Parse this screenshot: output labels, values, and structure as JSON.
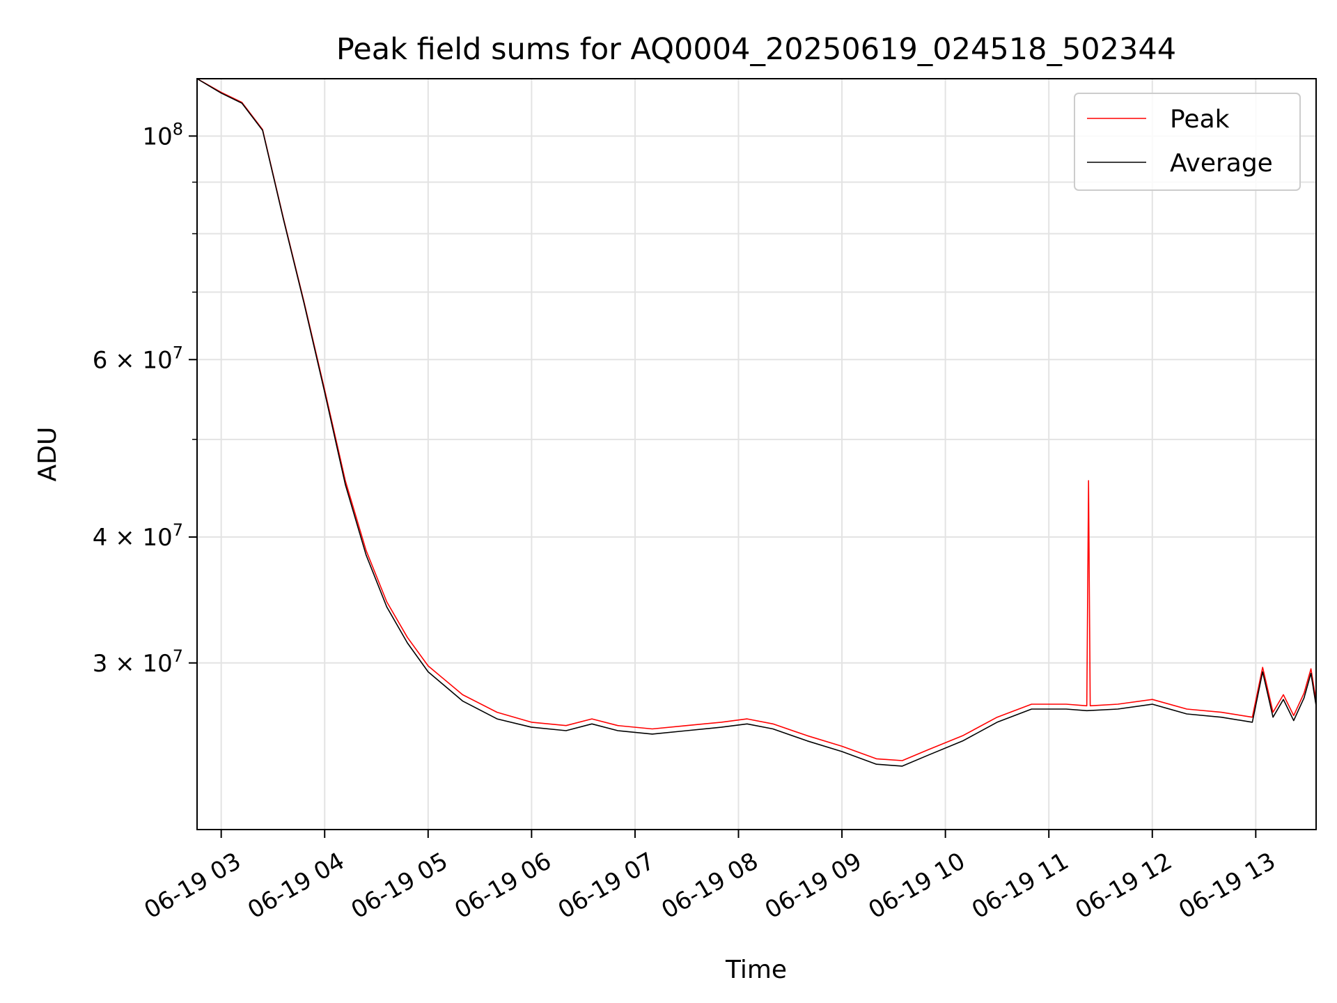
{
  "chart_data": {
    "type": "line",
    "title": "Peak field sums for AQ0004_20250619_024518_502344",
    "xlabel": "Time",
    "ylabel": "ADU",
    "y_scale": "log",
    "ylim": [
      20500000,
      114000000
    ],
    "xlim": [
      "06-19 02:46",
      "06-19 13:35"
    ],
    "grid": true,
    "legend_position": "top-right",
    "x_ticks": [
      "06-19 03",
      "06-19 04",
      "06-19 05",
      "06-19 06",
      "06-19 07",
      "06-19 08",
      "06-19 09",
      "06-19 10",
      "06-19 11",
      "06-19 12",
      "06-19 13"
    ],
    "x_tick_values": [
      "06-19 03:00",
      "06-19 04:00",
      "06-19 05:00",
      "06-19 06:00",
      "06-19 07:00",
      "06-19 08:00",
      "06-19 09:00",
      "06-19 10:00",
      "06-19 11:00",
      "06-19 12:00",
      "06-19 13:00"
    ],
    "y_ticks": [
      {
        "value": 100000000,
        "base": "10",
        "exp": "8"
      },
      {
        "value": 60000000,
        "base": "6 × 10",
        "exp": "7"
      },
      {
        "value": 40000000,
        "base": "4 × 10",
        "exp": "7"
      },
      {
        "value": 30000000,
        "base": "3 × 10",
        "exp": "7"
      }
    ],
    "y_minor_ticks": [
      70000000,
      80000000,
      90000000,
      50000000
    ],
    "series": [
      {
        "name": "Peak",
        "color": "#ff0000",
        "x": [
          "06-19 02:46",
          "06-19 03:00",
          "06-19 03:12",
          "06-19 03:24",
          "06-19 03:36",
          "06-19 03:48",
          "06-19 04:00",
          "06-19 04:12",
          "06-19 04:24",
          "06-19 04:36",
          "06-19 04:48",
          "06-19 05:00",
          "06-19 05:20",
          "06-19 05:40",
          "06-19 06:00",
          "06-19 06:20",
          "06-19 06:35",
          "06-19 06:50",
          "06-19 07:10",
          "06-19 07:30",
          "06-19 07:50",
          "06-19 08:05",
          "06-19 08:20",
          "06-19 08:40",
          "06-19 09:00",
          "06-19 09:20",
          "06-19 09:35",
          "06-19 09:50",
          "06-19 10:10",
          "06-19 10:30",
          "06-19 10:50",
          "06-19 11:10",
          "06-19 11:22",
          "06-19 11:23",
          "06-19 11:24",
          "06-19 11:40",
          "06-19 12:00",
          "06-19 12:20",
          "06-19 12:40",
          "06-19 12:58",
          "06-19 13:04",
          "06-19 13:10",
          "06-19 13:16",
          "06-19 13:22",
          "06-19 13:28",
          "06-19 13:32",
          "06-19 13:35"
        ],
        "y": [
          114000000,
          110500000,
          108000000,
          101500000,
          83000000,
          68500000,
          56000000,
          45500000,
          38800000,
          34500000,
          31800000,
          29800000,
          27900000,
          26800000,
          26200000,
          26000000,
          26400000,
          26000000,
          25800000,
          26000000,
          26200000,
          26400000,
          26100000,
          25400000,
          24800000,
          24100000,
          24000000,
          24600000,
          25400000,
          26500000,
          27300000,
          27300000,
          27200000,
          45500000,
          27200000,
          27300000,
          27600000,
          27000000,
          26800000,
          26500000,
          29700000,
          26800000,
          27900000,
          26600000,
          28000000,
          29600000,
          27500000
        ]
      },
      {
        "name": "Average",
        "color": "#000000",
        "x": [
          "06-19 02:46",
          "06-19 03:00",
          "06-19 03:12",
          "06-19 03:24",
          "06-19 03:36",
          "06-19 03:48",
          "06-19 04:00",
          "06-19 04:12",
          "06-19 04:24",
          "06-19 04:36",
          "06-19 04:48",
          "06-19 05:00",
          "06-19 05:20",
          "06-19 05:40",
          "06-19 06:00",
          "06-19 06:20",
          "06-19 06:35",
          "06-19 06:50",
          "06-19 07:10",
          "06-19 07:30",
          "06-19 07:50",
          "06-19 08:05",
          "06-19 08:20",
          "06-19 08:40",
          "06-19 09:00",
          "06-19 09:20",
          "06-19 09:35",
          "06-19 09:50",
          "06-19 10:10",
          "06-19 10:30",
          "06-19 10:50",
          "06-19 11:10",
          "06-19 11:22",
          "06-19 11:40",
          "06-19 12:00",
          "06-19 12:20",
          "06-19 12:40",
          "06-19 12:58",
          "06-19 13:04",
          "06-19 13:10",
          "06-19 13:16",
          "06-19 13:22",
          "06-19 13:28",
          "06-19 13:32",
          "06-19 13:35"
        ],
        "y": [
          114000000,
          110300000,
          107800000,
          101300000,
          82800000,
          68300000,
          55700000,
          45100000,
          38400000,
          34100000,
          31400000,
          29400000,
          27500000,
          26400000,
          25900000,
          25700000,
          26100000,
          25700000,
          25500000,
          25700000,
          25900000,
          26100000,
          25800000,
          25100000,
          24500000,
          23800000,
          23700000,
          24300000,
          25100000,
          26200000,
          27000000,
          27000000,
          26900000,
          27000000,
          27300000,
          26700000,
          26500000,
          26200000,
          29400000,
          26500000,
          27600000,
          26300000,
          27700000,
          29300000,
          27200000
        ]
      }
    ]
  }
}
